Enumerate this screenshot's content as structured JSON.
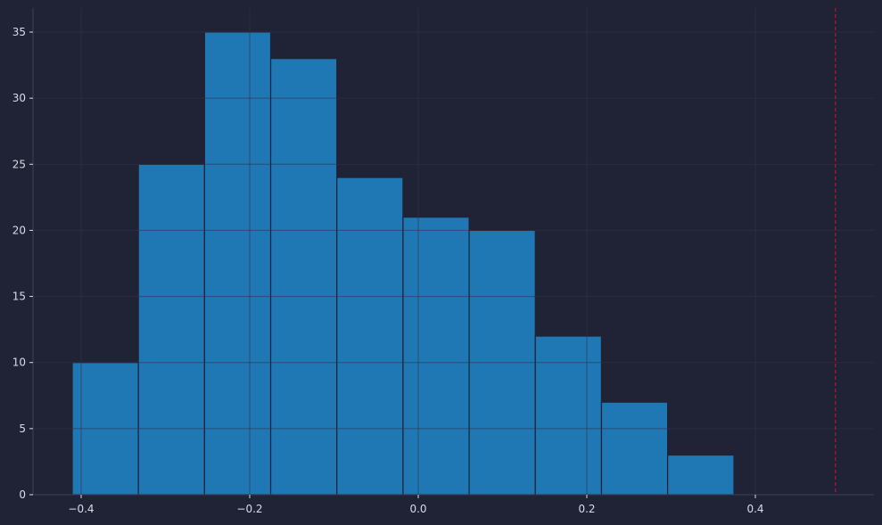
{
  "chart_data": {
    "type": "histogram",
    "bin_edges": [
      -0.4106,
      -0.3321,
      -0.2536,
      -0.1751,
      -0.0966,
      -0.0181,
      0.0604,
      0.1389,
      0.2174,
      0.2959,
      0.3746
    ],
    "values": [
      10,
      25,
      35,
      33,
      24,
      21,
      20,
      12,
      7,
      3
    ],
    "xlim": [
      -0.455,
      0.545
    ],
    "ylim": [
      0,
      36.8
    ],
    "xticks": [
      -0.4,
      -0.2,
      0.0,
      0.2,
      0.4
    ],
    "xtick_labels": [
      "−0.4",
      "−0.2",
      "0.0",
      "0.2",
      "0.4"
    ],
    "yticks": [
      0,
      5,
      10,
      15,
      20,
      25,
      30,
      35
    ],
    "ytick_labels": [
      "0",
      "5",
      "10",
      "15",
      "20",
      "25",
      "30",
      "35"
    ],
    "reference_line": {
      "x": 0.495,
      "style": "dashed",
      "color": "#e0141e"
    },
    "grid": true,
    "colors": {
      "background": "#1f2335",
      "bar": "#1f77b4",
      "bar_edge": "#1f2335",
      "grid": "#2e3348",
      "spine": "#3b4058",
      "text": "#d8dbe6"
    }
  }
}
